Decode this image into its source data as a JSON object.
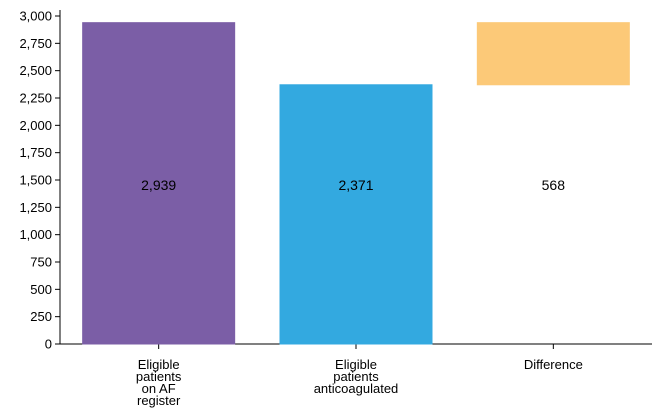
{
  "chart_data": {
    "type": "bar",
    "subtype": "waterfall",
    "categories": [
      [
        "Eligible",
        "patients",
        "on AF",
        "register"
      ],
      [
        "Eligible",
        "patients",
        "anticoagulated"
      ],
      [
        "Difference"
      ]
    ],
    "bars": [
      {
        "base": 0,
        "top": 2939,
        "label": "2,939",
        "color": "#7b5ea6"
      },
      {
        "base": 0,
        "top": 2371,
        "label": "2,371",
        "color": "#33a9e0"
      },
      {
        "base": 2371,
        "top": 2939,
        "label": "568",
        "color": "#fcc978"
      }
    ],
    "ylim": [
      0,
      3000
    ],
    "yticks": [
      0,
      250,
      500,
      750,
      1000,
      1250,
      1500,
      1750,
      2000,
      2250,
      2500,
      2750,
      3000
    ],
    "ytick_labels": [
      "0",
      "250",
      "500",
      "750",
      "1,000",
      "1,250",
      "1,500",
      "1,750",
      "2,000",
      "2,250",
      "2,500",
      "2,750",
      "3,000"
    ],
    "title": "",
    "xlabel": "",
    "ylabel": "",
    "grid": false
  }
}
